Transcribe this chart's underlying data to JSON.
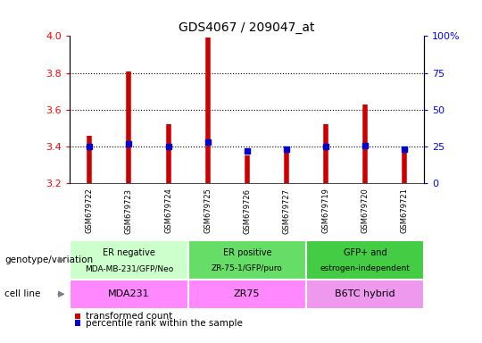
{
  "title": "GDS4067 / 209047_at",
  "samples": [
    "GSM679722",
    "GSM679723",
    "GSM679724",
    "GSM679725",
    "GSM679726",
    "GSM679727",
    "GSM679719",
    "GSM679720",
    "GSM679721"
  ],
  "transformed_count": [
    3.46,
    3.81,
    3.52,
    3.99,
    3.35,
    3.4,
    3.52,
    3.63,
    3.38
  ],
  "percentile_rank": [
    25,
    27,
    25,
    28,
    22,
    23,
    25,
    26,
    23
  ],
  "bar_bottom": 3.2,
  "ylim": [
    3.2,
    4.0
  ],
  "y2lim": [
    0,
    100
  ],
  "y_ticks": [
    3.2,
    3.4,
    3.6,
    3.8,
    4.0
  ],
  "y2_ticks": [
    0,
    25,
    50,
    75,
    100
  ],
  "dotted_lines": [
    3.4,
    3.6,
    3.8
  ],
  "bar_color": "#cc0000",
  "percentile_color": "#0000cc",
  "groups": [
    {
      "label": "ER negative",
      "sublabel": "MDA-MB-231/GFP/Neo",
      "span": [
        0,
        3
      ],
      "color": "#ccffcc"
    },
    {
      "label": "ER positive",
      "sublabel": "ZR-75-1/GFP/puro",
      "span": [
        3,
        6
      ],
      "color": "#66dd66"
    },
    {
      "label": "GFP+ and",
      "sublabel": "estrogen-independent",
      "span": [
        6,
        9
      ],
      "color": "#44cc44"
    }
  ],
  "cell_lines": [
    {
      "label": "MDA231",
      "span": [
        0,
        3
      ],
      "color": "#ff88ff"
    },
    {
      "label": "ZR75",
      "span": [
        3,
        6
      ],
      "color": "#ff88ff"
    },
    {
      "label": "B6TC hybrid",
      "span": [
        6,
        9
      ],
      "color": "#ee99ee"
    }
  ],
  "genotype_label": "genotype/variation",
  "cellline_label": "cell line",
  "legend_transformed": "transformed count",
  "legend_percentile": "percentile rank within the sample",
  "percentile_marker_size": 5,
  "bar_linewidth": 4,
  "gray_bg": "#d8d8d8",
  "white_sep": "#ffffff"
}
